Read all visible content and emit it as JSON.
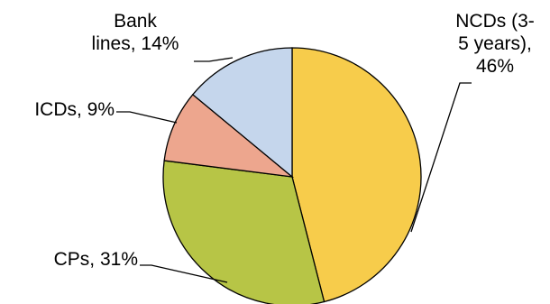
{
  "chart_data": {
    "type": "pie",
    "title": "",
    "start_angle_deg": 0,
    "direction": "clockwise",
    "slices": [
      {
        "label_lines": [
          "NCDs (3-",
          "5 years),",
          "46%"
        ],
        "category": "NCDs (3-5 years)",
        "value": 46,
        "color": "#F7CC4B"
      },
      {
        "label_lines": [
          "CPs, 31%"
        ],
        "category": "CPs",
        "value": 31,
        "color": "#B7C546"
      },
      {
        "label_lines": [
          "ICDs, 9%"
        ],
        "category": "ICDs",
        "value": 9,
        "color": "#EDA68E"
      },
      {
        "label_lines": [
          "Bank",
          "lines, 14%"
        ],
        "category": "Bank lines",
        "value": 14,
        "color": "#C5D6EC"
      }
    ]
  }
}
